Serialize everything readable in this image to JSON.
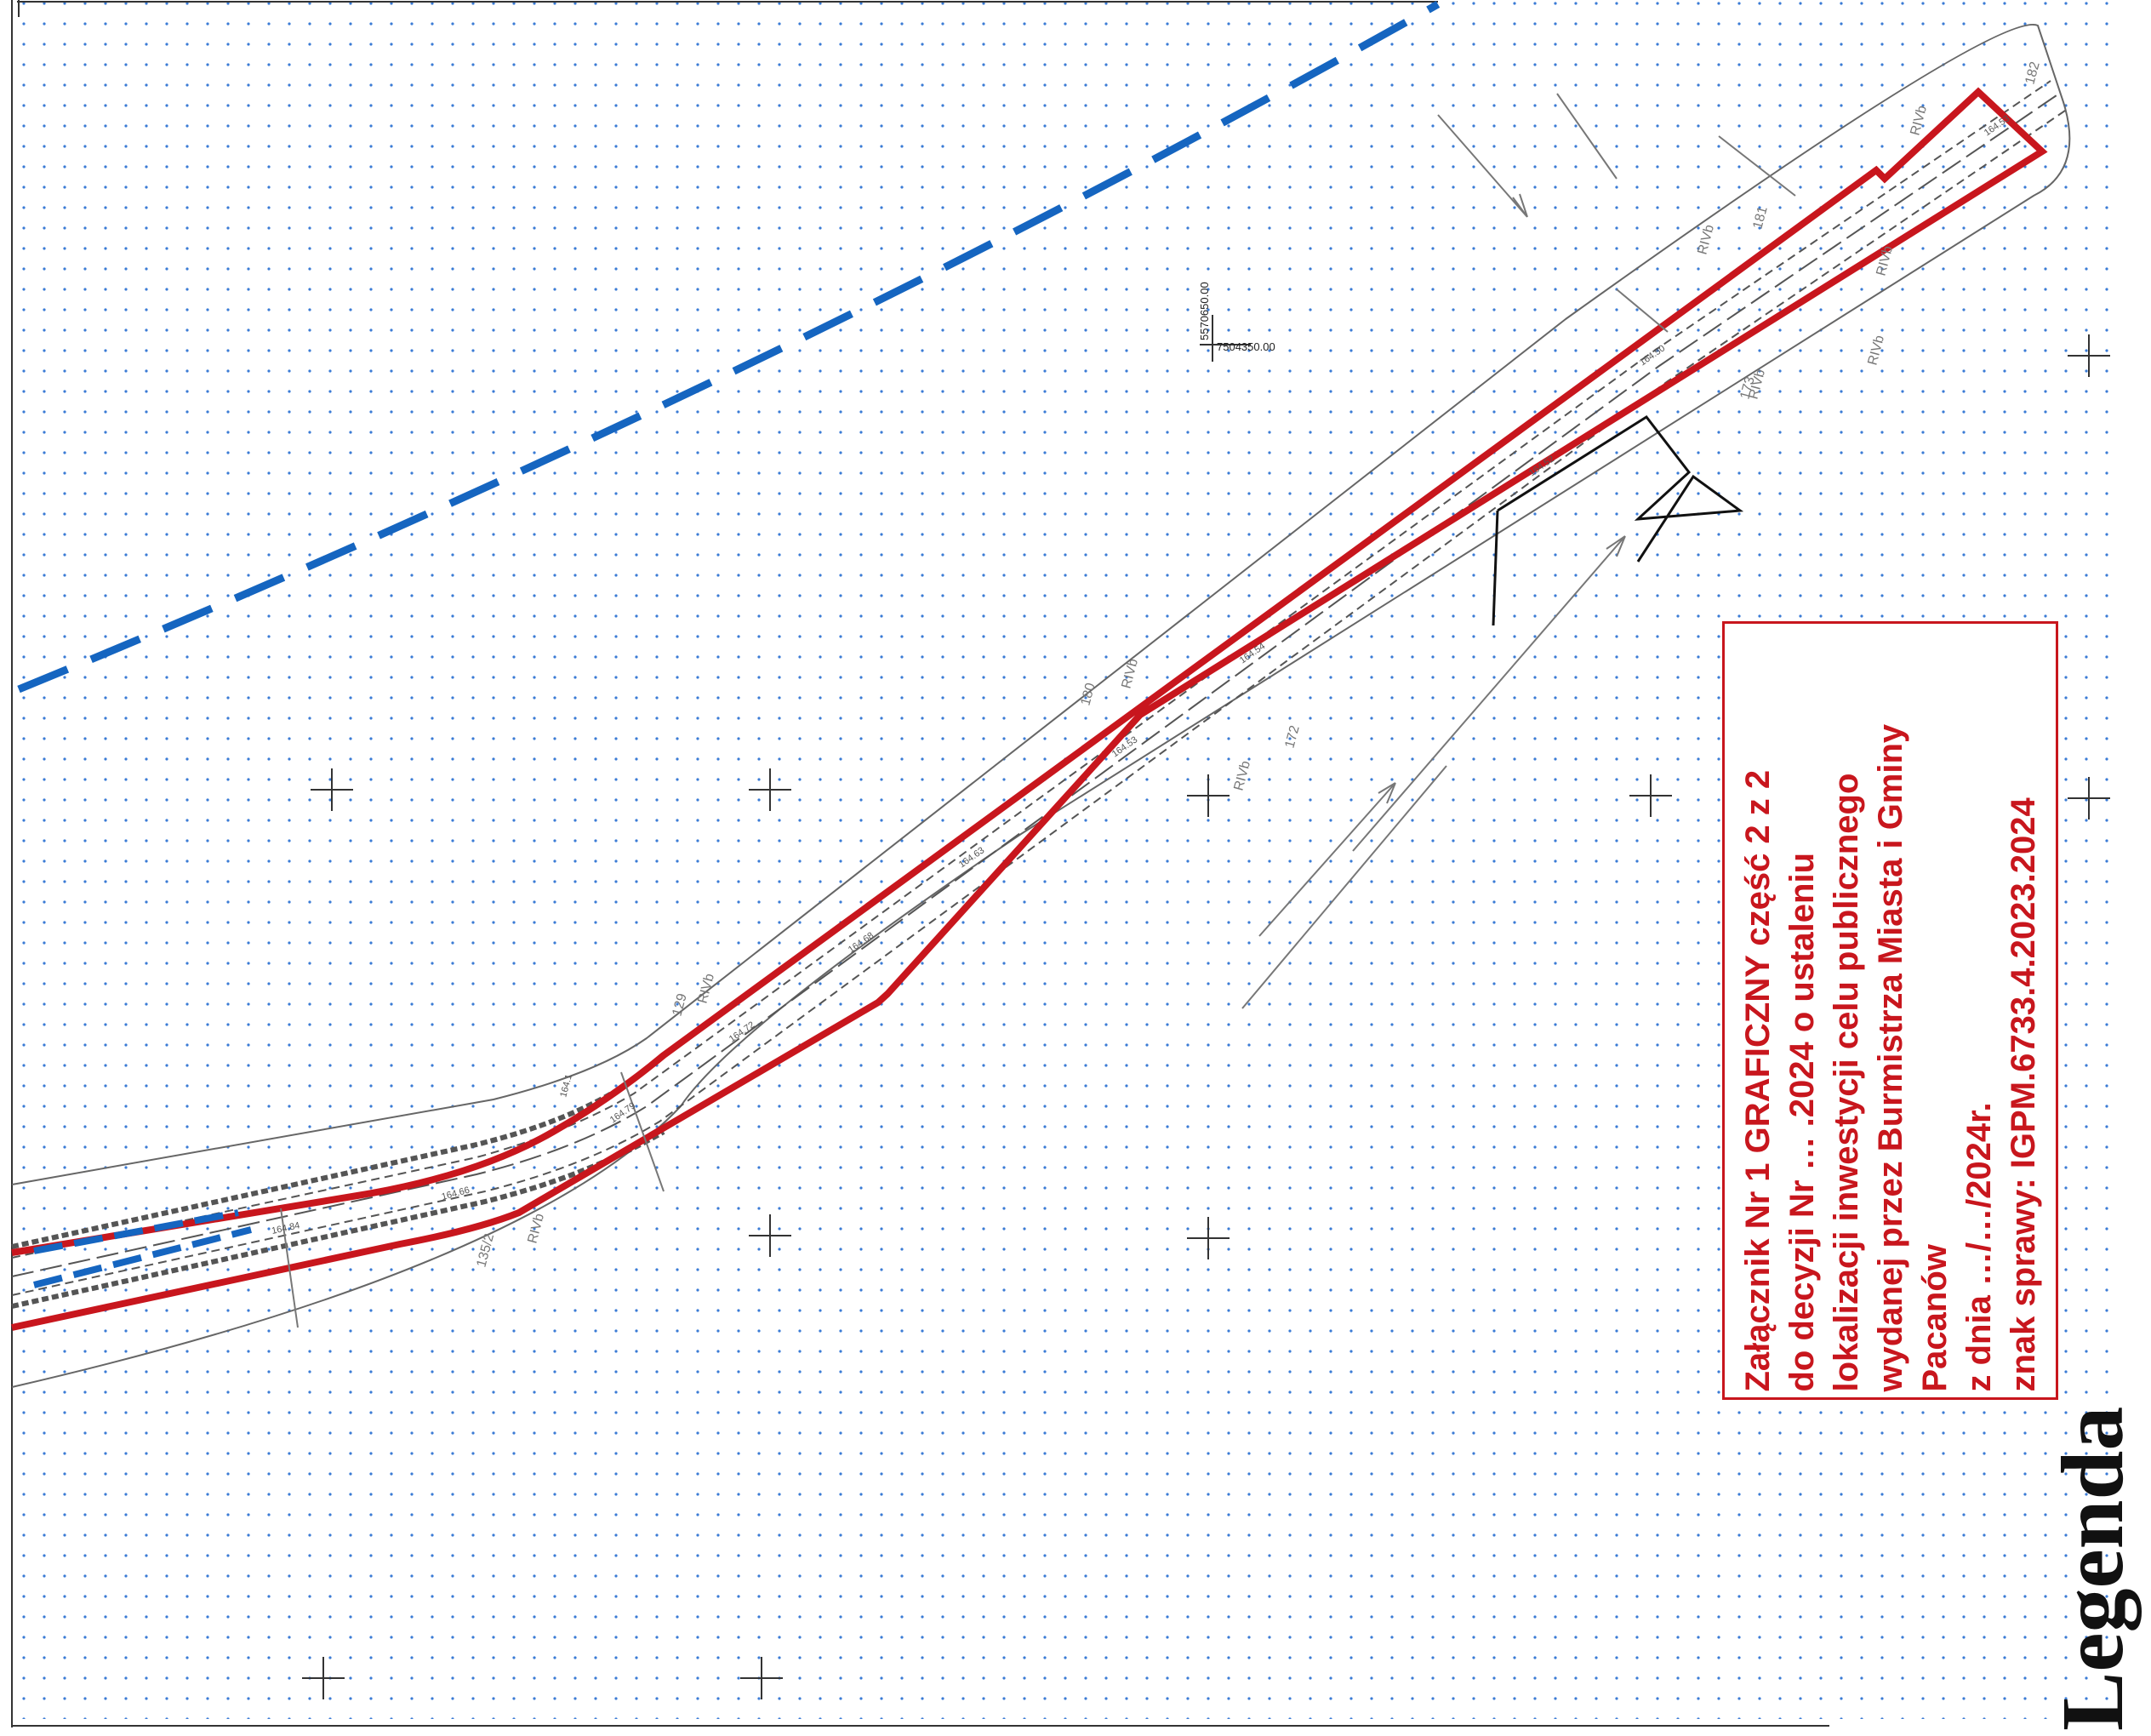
{
  "info_box": {
    "lines": [
      "Załącznik Nr  1 GRAFICZNY  część 2 z 2",
      "do decyzji Nr … .2024 o ustaleniu",
      "lokalizacji inwestycji celu publicznego",
      "wydanej przez Burmistrza Miasta i Gminy",
      "Pacanów",
      "z dnia …/…/2024r.",
      "znak sprawy: IGPM.6733.4.2023.2024"
    ]
  },
  "legend": {
    "heading": "Legenda:"
  },
  "map": {
    "coordinate_labels": [
      "5570650.00",
      "7504350.00"
    ],
    "land_use_labels": [
      "RIVb",
      "RIVb",
      "RIVb",
      "RIVb",
      "RIVb",
      "RIVb",
      "RIVb",
      "RIVb",
      "RIVb"
    ],
    "parcel_numbers": [
      "182",
      "181",
      "180",
      "173",
      "172",
      "129",
      "135/2"
    ],
    "elevation_labels": [
      "164.53",
      "164.50",
      "164.52",
      "164.54",
      "164.53",
      "164.63",
      "164.68",
      "164.72",
      "164.79",
      "164.66",
      "164.84",
      "164.1"
    ],
    "colors": {
      "boundary_red": "#c8161d",
      "dashed_blue": "#1565c0",
      "dot_grid": "#3a7bd5",
      "linework": "#555555"
    }
  }
}
